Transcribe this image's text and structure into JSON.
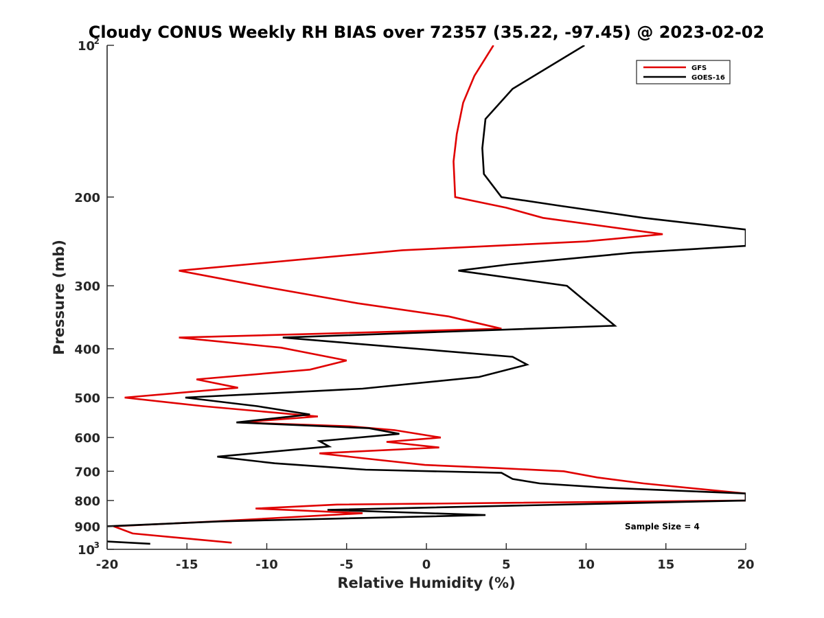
{
  "chart_data": {
    "type": "line",
    "title": "Cloudy CONUS Weekly RH BIAS over 72357 (35.22, -97.45) @ 2023-02-02",
    "xlabel": "Relative Humidity (%)",
    "ylabel": "Pressure (mb)",
    "xlim": [
      -20,
      20
    ],
    "ylim": [
      100,
      1000
    ],
    "yscale": "log",
    "y_reversed": true,
    "grid": false,
    "legend_position": "top-right",
    "x_ticks": [
      {
        "value": -20,
        "label": "-20"
      },
      {
        "value": -15,
        "label": "-15"
      },
      {
        "value": -10,
        "label": "-10"
      },
      {
        "value": -5,
        "label": "-5"
      },
      {
        "value": 0,
        "label": "0"
      },
      {
        "value": 5,
        "label": "5"
      },
      {
        "value": 10,
        "label": "10"
      },
      {
        "value": 15,
        "label": "15"
      },
      {
        "value": 20,
        "label": "20"
      }
    ],
    "y_ticks": [
      {
        "value": 100,
        "label": "10",
        "sup": "2"
      },
      {
        "value": 200,
        "label": "200",
        "sup": ""
      },
      {
        "value": 300,
        "label": "300",
        "sup": ""
      },
      {
        "value": 400,
        "label": "400",
        "sup": ""
      },
      {
        "value": 500,
        "label": "500",
        "sup": ""
      },
      {
        "value": 600,
        "label": "600",
        "sup": ""
      },
      {
        "value": 700,
        "label": "700",
        "sup": ""
      },
      {
        "value": 800,
        "label": "800",
        "sup": ""
      },
      {
        "value": 900,
        "label": "900",
        "sup": ""
      },
      {
        "value": 1000,
        "label": "10",
        "sup": "3"
      }
    ],
    "series": [
      {
        "name": "GFS",
        "color": "#e00000",
        "points": [
          [
            4.2,
            100
          ],
          [
            3.0,
            115
          ],
          [
            2.3,
            130
          ],
          [
            1.9,
            150
          ],
          [
            1.7,
            170
          ],
          [
            1.8,
            200
          ],
          [
            5.0,
            210
          ],
          [
            7.3,
            220
          ],
          [
            14.8,
            237
          ],
          [
            10.0,
            245
          ],
          [
            -1.5,
            255
          ],
          [
            -15.5,
            280
          ],
          [
            -10.5,
            300
          ],
          [
            -4.3,
            325
          ],
          [
            1.4,
            345
          ],
          [
            4.7,
            365
          ],
          [
            -15.5,
            380
          ],
          [
            -9.1,
            398
          ],
          [
            -5.0,
            422
          ],
          [
            -7.3,
            440
          ],
          [
            -14.4,
            460
          ],
          [
            -11.8,
            478
          ],
          [
            -18.9,
            500
          ],
          [
            -14.0,
            520
          ],
          [
            -6.8,
            545
          ],
          [
            -11.7,
            560
          ],
          [
            -4.8,
            570
          ],
          [
            -2.0,
            580
          ],
          [
            0.9,
            600
          ],
          [
            -2.5,
            612
          ],
          [
            0.8,
            628
          ],
          [
            -6.7,
            645
          ],
          [
            -3.9,
            660
          ],
          [
            -0.1,
            680
          ],
          [
            4.5,
            690
          ],
          [
            8.6,
            700
          ],
          [
            10.7,
            720
          ],
          [
            13.6,
            740
          ],
          [
            20,
            775
          ],
          [
            20,
            800
          ],
          [
            -5.6,
            815
          ],
          [
            -10.7,
            830
          ],
          [
            -4.0,
            848
          ],
          [
            -13.2,
            880
          ],
          [
            -19.6,
            900
          ],
          [
            -18.4,
            930
          ],
          [
            -12.2,
            970
          ]
        ]
      },
      {
        "name": "GOES-16",
        "color": "#000000",
        "points": [
          [
            9.9,
            100
          ],
          [
            5.4,
            122
          ],
          [
            3.7,
            140
          ],
          [
            3.5,
            160
          ],
          [
            3.6,
            180
          ],
          [
            4.7,
            200
          ],
          [
            8.3,
            208
          ],
          [
            13.6,
            220
          ],
          [
            20,
            232
          ],
          [
            20,
            250
          ],
          [
            12.9,
            258
          ],
          [
            5.2,
            272
          ],
          [
            2.0,
            280
          ],
          [
            8.8,
            300
          ],
          [
            11.8,
            360
          ],
          [
            -9.0,
            380
          ],
          [
            5.4,
            415
          ],
          [
            6.3,
            430
          ],
          [
            3.3,
            455
          ],
          [
            -4.0,
            480
          ],
          [
            -15.1,
            500
          ],
          [
            -10.6,
            520
          ],
          [
            -7.3,
            540
          ],
          [
            -11.9,
            560
          ],
          [
            -3.6,
            575
          ],
          [
            -1.7,
            590
          ],
          [
            -6.7,
            610
          ],
          [
            -6.1,
            625
          ],
          [
            -13.1,
            655
          ],
          [
            -9.5,
            675
          ],
          [
            -3.8,
            695
          ],
          [
            4.7,
            705
          ],
          [
            5.4,
            725
          ],
          [
            7.1,
            740
          ],
          [
            11.4,
            755
          ],
          [
            20,
            775
          ],
          [
            20,
            800
          ],
          [
            -6.2,
            835
          ],
          [
            3.7,
            855
          ],
          [
            -12.9,
            880
          ],
          [
            -20,
            900
          ]
        ]
      },
      {
        "name": "",
        "color": "#000000",
        "points": [
          [
            -20,
            965
          ],
          [
            -17.3,
            975
          ]
        ]
      }
    ],
    "legend": [
      {
        "label": "GFS",
        "color": "#e00000"
      },
      {
        "label": "GOES-16",
        "color": "#000000"
      }
    ],
    "annotations": [
      {
        "text": "Sample Size = 4"
      }
    ]
  }
}
